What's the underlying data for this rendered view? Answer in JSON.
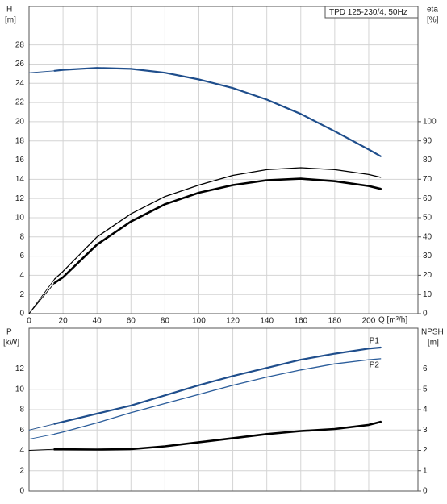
{
  "chart_data": [
    {
      "type": "line",
      "title": "TPD 125-230/4, 50Hz",
      "x_label": "Q [m³/h]",
      "y_label": "H",
      "y_unit": "[m]",
      "y2_label": "eta",
      "y2_unit": "[%]",
      "x": [
        0,
        15,
        20,
        40,
        60,
        80,
        100,
        120,
        140,
        160,
        180,
        200,
        207
      ],
      "xlim": [
        0,
        229
      ],
      "xticks": [
        0,
        20,
        40,
        60,
        80,
        100,
        120,
        140,
        160,
        180,
        200
      ],
      "ylim": [
        0,
        32
      ],
      "yticks": [
        0,
        2,
        4,
        6,
        8,
        10,
        12,
        14,
        16,
        18,
        20,
        22,
        24,
        26,
        28
      ],
      "y2lim": [
        0,
        160
      ],
      "y2ticks": [
        0,
        10,
        20,
        30,
        40,
        50,
        60,
        70,
        80,
        90,
        100
      ],
      "grid": true,
      "series": [
        {
          "color": "#1f4e8c",
          "values": [
            25.1,
            25.3,
            25.4,
            25.6,
            25.5,
            25.1,
            24.4,
            23.5,
            22.3,
            20.8,
            19.0,
            17.1,
            16.4
          ]
        },
        {
          "axis": "y2",
          "color": "#000000",
          "values": [
            0,
            18,
            22,
            40,
            52,
            61,
            67,
            72,
            75,
            76,
            75,
            72.5,
            71
          ]
        },
        {
          "axis": "y2",
          "color": "#000000",
          "values": [
            0,
            16,
            19,
            36,
            48,
            57,
            63,
            67,
            69.5,
            70.3,
            69,
            66.5,
            65
          ]
        }
      ]
    },
    {
      "type": "line",
      "y_label": "P",
      "y_unit": "[kW]",
      "y2_label": "NPSH",
      "y2_unit": "[m]",
      "x": [
        0,
        15,
        20,
        40,
        60,
        80,
        100,
        120,
        140,
        160,
        180,
        200,
        207
      ],
      "xlim": [
        0,
        229
      ],
      "xticks": [
        0,
        20,
        40,
        60,
        80,
        100,
        120,
        140,
        160,
        180,
        200
      ],
      "ylim": [
        0,
        16
      ],
      "yticks": [
        0,
        2,
        4,
        6,
        8,
        10,
        12
      ],
      "y2lim": [
        0,
        8
      ],
      "y2ticks": [
        0,
        1,
        2,
        3,
        4,
        5,
        6
      ],
      "grid": true,
      "series": [
        {
          "name": "P1",
          "color": "#1f4e8c",
          "values": [
            6.0,
            6.6,
            6.8,
            7.6,
            8.4,
            9.4,
            10.4,
            11.3,
            12.1,
            12.9,
            13.5,
            14.0,
            14.1
          ]
        },
        {
          "name": "P2",
          "color": "#2a5c9a",
          "values": [
            5.1,
            5.6,
            5.8,
            6.7,
            7.7,
            8.6,
            9.5,
            10.4,
            11.2,
            11.9,
            12.5,
            12.9,
            13.0
          ]
        },
        {
          "axis": "y2",
          "color": "#000000",
          "values": [
            2.0,
            2.05,
            2.05,
            2.04,
            2.06,
            2.2,
            2.4,
            2.6,
            2.8,
            2.95,
            3.05,
            3.25,
            3.4
          ]
        }
      ]
    }
  ]
}
